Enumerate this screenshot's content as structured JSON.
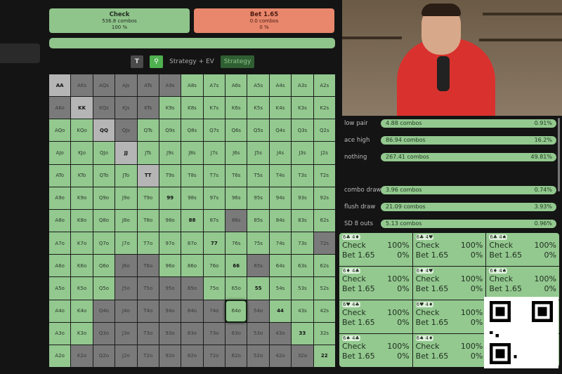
{
  "actions": {
    "check": {
      "label": "Check",
      "combos": "536.8 combos",
      "pct": "100 %"
    },
    "bet": {
      "label": "Bet 1.65",
      "combos": "0.0 combos",
      "pct": "0 %"
    }
  },
  "toolbar": {
    "t_label": "T",
    "search_icon": "search-icon",
    "strategy_ev": "Strategy + EV",
    "strategy": "Strategy"
  },
  "colors": {
    "check": "#8fc48b",
    "bet": "#e8876c",
    "blocked": "#7a7a7a",
    "pair_blocked": "#b5b5b5"
  },
  "grid": {
    "hands": [
      [
        "AA",
        "AKs",
        "AQs",
        "AJs",
        "ATs",
        "A9s",
        "A8s",
        "A7s",
        "A6s",
        "A5s",
        "A4s",
        "A3s",
        "A2s"
      ],
      [
        "AKo",
        "KK",
        "KQs",
        "KJs",
        "KTs",
        "K9s",
        "K8s",
        "K7s",
        "K6s",
        "K5s",
        "K4s",
        "K3s",
        "K2s"
      ],
      [
        "AQo",
        "KQo",
        "QQ",
        "QJs",
        "QTs",
        "Q9s",
        "Q8s",
        "Q7s",
        "Q6s",
        "Q5s",
        "Q4s",
        "Q3s",
        "Q2s"
      ],
      [
        "AJo",
        "KJo",
        "QJo",
        "JJ",
        "JTs",
        "J9s",
        "J8s",
        "J7s",
        "J6s",
        "J5s",
        "J4s",
        "J3s",
        "J2s"
      ],
      [
        "ATo",
        "KTo",
        "QTo",
        "JTo",
        "TT",
        "T9s",
        "T8s",
        "T7s",
        "T6s",
        "T5s",
        "T4s",
        "T3s",
        "T2s"
      ],
      [
        "A9o",
        "K9o",
        "Q9o",
        "J9o",
        "T9o",
        "99",
        "98s",
        "97s",
        "96s",
        "95s",
        "94s",
        "93s",
        "92s"
      ],
      [
        "A8o",
        "K8o",
        "Q8o",
        "J8o",
        "T8o",
        "98o",
        "88",
        "87s",
        "86s",
        "85s",
        "84s",
        "83s",
        "82s"
      ],
      [
        "A7o",
        "K7o",
        "Q7o",
        "J7o",
        "T7o",
        "97o",
        "87o",
        "77",
        "76s",
        "75s",
        "74s",
        "73s",
        "72s"
      ],
      [
        "A6o",
        "K6o",
        "Q6o",
        "J6o",
        "T6o",
        "96o",
        "86o",
        "76o",
        "66",
        "65s",
        "64s",
        "63s",
        "62s"
      ],
      [
        "A5o",
        "K5o",
        "Q5o",
        "J5o",
        "T5o",
        "95o",
        "85o",
        "75o",
        "65o",
        "55",
        "54s",
        "53s",
        "52s"
      ],
      [
        "A4o",
        "K4o",
        "Q4o",
        "J4o",
        "T4o",
        "94o",
        "84o",
        "74o",
        "64o",
        "54o",
        "44",
        "43s",
        "42s"
      ],
      [
        "A3o",
        "K3o",
        "Q3o",
        "J3o",
        "T3o",
        "93o",
        "83o",
        "73o",
        "63o",
        "53o",
        "43o",
        "33",
        "32s"
      ],
      [
        "A2o",
        "K2o",
        "Q2o",
        "J2o",
        "T2o",
        "92o",
        "82o",
        "72o",
        "62o",
        "52o",
        "42o",
        "32o",
        "22"
      ]
    ],
    "states": [
      "lddddd0000000",
      "dlddd00000000",
      "00ld000000000",
      "000l000000000",
      "0000l00000000",
      "0000000000000",
      "00000000d0000",
      "000000000000d",
      "000dd0000d000",
      "000dddd000000",
      "00dddddd0d000",
      "00ddddddddd00",
      "0ddddddddddd0"
    ],
    "selected": "64o"
  },
  "stats": [
    {
      "label": "low pair",
      "combos": "4.88 combos",
      "pct": "0.91%"
    },
    {
      "label": "ace high",
      "combos": "86.94 combos",
      "pct": "16.2%"
    },
    {
      "label": "nothing",
      "combos": "267.41 combos",
      "pct": "49.81%"
    },
    {
      "label": "combo draw",
      "combos": "3.96 combos",
      "pct": "0.74%"
    },
    {
      "label": "flush draw",
      "combos": "21.09 combos",
      "pct": "3.93%"
    },
    {
      "label": "SD 8 outs",
      "combos": "5.13 combos",
      "pct": "0.96%"
    }
  ],
  "combos": [
    {
      "cards": "6♣ 4♦",
      "check": "Check",
      "check_pct": "100%",
      "bet": "Bet 1.65",
      "bet_pct": "0%"
    },
    {
      "cards": "6♣ 4♥",
      "check": "Check",
      "check_pct": "100%",
      "bet": "Bet 1.65",
      "bet_pct": "0%"
    },
    {
      "cards": "6♣ 4♠",
      "check": "Check",
      "check_pct": "100%",
      "bet": "Bet 1.65",
      "bet_pct": "0%"
    },
    {
      "cards": "6♦ 4♣",
      "check": "Check",
      "check_pct": "100%",
      "bet": "Bet 1.65",
      "bet_pct": "0%"
    },
    {
      "cards": "6♦ 4♥",
      "check": "Check",
      "check_pct": "100%",
      "bet": "Bet 1.65",
      "bet_pct": "0%"
    },
    {
      "cards": "6♦ 4♠",
      "check": "Check",
      "check_pct": "100%",
      "bet": "Bet 1.65",
      "bet_pct": "0%"
    },
    {
      "cards": "6♥ 4♣",
      "check": "Check",
      "check_pct": "100%",
      "bet": "Bet 1.65",
      "bet_pct": "0%"
    },
    {
      "cards": "6♥ 4♦",
      "check": "Check",
      "check_pct": "100%",
      "bet": "Bet 1.65",
      "bet_pct": "0%"
    },
    {
      "cards": "",
      "check": "",
      "check_pct": "",
      "bet": "",
      "bet_pct": ""
    },
    {
      "cards": "6♠ 4♣",
      "check": "Check",
      "check_pct": "100%",
      "bet": "Bet 1.65",
      "bet_pct": "0%"
    },
    {
      "cards": "6♠ 4♦",
      "check": "Check",
      "check_pct": "100%",
      "bet": "Bet 1.65",
      "bet_pct": "0%"
    },
    {
      "cards": "",
      "check": "",
      "check_pct": "",
      "bet": "",
      "bet_pct": ""
    }
  ]
}
